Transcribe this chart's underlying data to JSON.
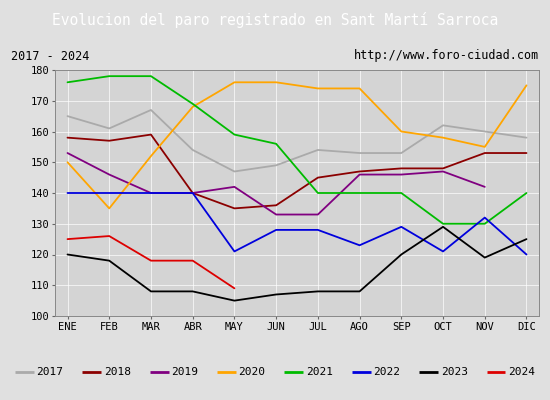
{
  "title": "Evolucion del paro registrado en Sant Martí Sarroca",
  "subtitle_left": "2017 - 2024",
  "subtitle_right": "http://www.foro-ciudad.com",
  "ylim": [
    100,
    180
  ],
  "months": [
    "ENE",
    "FEB",
    "MAR",
    "ABR",
    "MAY",
    "JUN",
    "JUL",
    "AGO",
    "SEP",
    "OCT",
    "NOV",
    "DIC"
  ],
  "series": {
    "2017": {
      "color": "#aaaaaa",
      "data": [
        165,
        161,
        167,
        154,
        147,
        149,
        154,
        153,
        153,
        162,
        160,
        158
      ]
    },
    "2018": {
      "color": "#8b0000",
      "data": [
        158,
        157,
        159,
        140,
        135,
        136,
        145,
        147,
        148,
        148,
        153,
        153
      ]
    },
    "2019": {
      "color": "#800080",
      "data": [
        153,
        146,
        140,
        140,
        142,
        133,
        133,
        146,
        146,
        147,
        142,
        null
      ]
    },
    "2020": {
      "color": "#ffa500",
      "data": [
        150,
        135,
        152,
        168,
        176,
        176,
        174,
        174,
        160,
        158,
        155,
        175
      ]
    },
    "2021": {
      "color": "#00bb00",
      "data": [
        176,
        178,
        178,
        169,
        159,
        156,
        140,
        140,
        140,
        130,
        130,
        140
      ]
    },
    "2022": {
      "color": "#0000dd",
      "data": [
        140,
        140,
        140,
        140,
        121,
        128,
        128,
        123,
        129,
        121,
        132,
        120
      ]
    },
    "2023": {
      "color": "#000000",
      "data": [
        120,
        118,
        108,
        108,
        105,
        107,
        108,
        108,
        120,
        129,
        119,
        125
      ]
    },
    "2024": {
      "color": "#dd0000",
      "data": [
        125,
        126,
        118,
        118,
        109,
        null,
        null,
        null,
        null,
        null,
        null,
        null
      ]
    }
  },
  "background_color": "#e0e0e0",
  "plot_bg_color": "#d4d4d4",
  "title_bg_color": "#5b8fd4",
  "title_fg_color": "#ffffff",
  "subtitle_bg_color": "#f0f0f0",
  "border_color": "#555555",
  "grid_color": "#ffffff",
  "yticks": [
    100,
    110,
    120,
    130,
    140,
    150,
    160,
    170,
    180
  ]
}
